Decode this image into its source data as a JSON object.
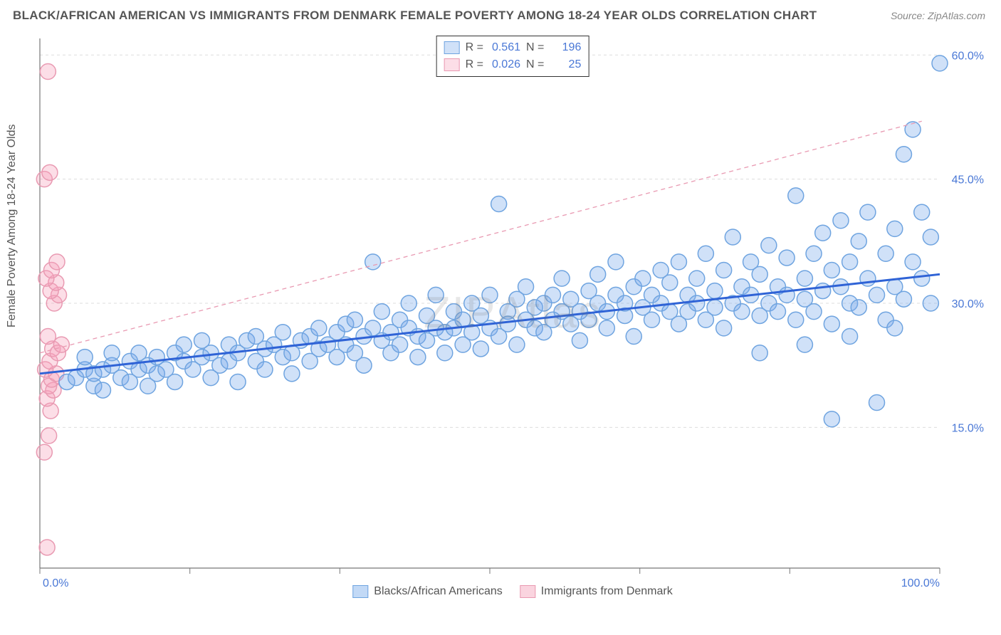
{
  "title": "BLACK/AFRICAN AMERICAN VS IMMIGRANTS FROM DENMARK FEMALE POVERTY AMONG 18-24 YEAR OLDS CORRELATION CHART",
  "source": "Source: ZipAtlas.com",
  "ylabel": "Female Poverty Among 18-24 Year Olds",
  "watermark": "ZIPAtlas",
  "chart": {
    "type": "scatter",
    "xlim": [
      0,
      100
    ],
    "ylim": [
      -2,
      62
    ],
    "xticks": [
      0,
      16.67,
      33.33,
      50,
      66.67,
      83.33,
      100
    ],
    "xtick_labels_shown": {
      "0": "0.0%",
      "100": "100.0%"
    },
    "yticks": [
      15,
      30,
      45,
      60
    ],
    "ytick_labels": [
      "15.0%",
      "30.0%",
      "45.0%",
      "60.0%"
    ],
    "grid_color": "#dddddd",
    "grid_dash": "4 4",
    "axis_color": "#777777",
    "background_color": "#ffffff",
    "marker_radius": 11,
    "marker_stroke_width": 1.5,
    "series": [
      {
        "name": "Blacks/African Americans",
        "fill": "rgba(120,170,235,0.35)",
        "stroke": "#6fa4e0",
        "r_value": "0.561",
        "n_value": "196",
        "trend": {
          "x1": 0,
          "y1": 21.5,
          "x2": 100,
          "y2": 33.5,
          "color": "#2f63d6",
          "width": 3,
          "dash": ""
        },
        "points": [
          [
            3,
            20.5
          ],
          [
            4,
            21
          ],
          [
            5,
            22
          ],
          [
            5,
            23.5
          ],
          [
            6,
            20
          ],
          [
            6,
            21.5
          ],
          [
            7,
            22
          ],
          [
            7,
            19.5
          ],
          [
            8,
            22.5
          ],
          [
            8,
            24
          ],
          [
            9,
            21
          ],
          [
            10,
            20.5
          ],
          [
            10,
            23
          ],
          [
            11,
            22
          ],
          [
            11,
            24
          ],
          [
            12,
            20
          ],
          [
            12,
            22.5
          ],
          [
            13,
            21.5
          ],
          [
            13,
            23.5
          ],
          [
            14,
            22
          ],
          [
            15,
            24
          ],
          [
            15,
            20.5
          ],
          [
            16,
            23
          ],
          [
            16,
            25
          ],
          [
            17,
            22
          ],
          [
            18,
            23.5
          ],
          [
            18,
            25.5
          ],
          [
            19,
            21
          ],
          [
            19,
            24
          ],
          [
            20,
            22.5
          ],
          [
            21,
            25
          ],
          [
            21,
            23
          ],
          [
            22,
            24
          ],
          [
            22,
            20.5
          ],
          [
            23,
            25.5
          ],
          [
            24,
            23
          ],
          [
            24,
            26
          ],
          [
            25,
            24.5
          ],
          [
            25,
            22
          ],
          [
            26,
            25
          ],
          [
            27,
            23.5
          ],
          [
            27,
            26.5
          ],
          [
            28,
            24
          ],
          [
            28,
            21.5
          ],
          [
            29,
            25.5
          ],
          [
            30,
            26
          ],
          [
            30,
            23
          ],
          [
            31,
            27
          ],
          [
            31,
            24.5
          ],
          [
            32,
            25
          ],
          [
            33,
            26.5
          ],
          [
            33,
            23.5
          ],
          [
            34,
            27.5
          ],
          [
            34,
            25
          ],
          [
            35,
            24
          ],
          [
            35,
            28
          ],
          [
            36,
            26
          ],
          [
            36,
            22.5
          ],
          [
            37,
            27
          ],
          [
            37,
            35
          ],
          [
            38,
            25.5
          ],
          [
            38,
            29
          ],
          [
            39,
            26.5
          ],
          [
            39,
            24
          ],
          [
            40,
            28
          ],
          [
            40,
            25
          ],
          [
            41,
            27
          ],
          [
            41,
            30
          ],
          [
            42,
            26
          ],
          [
            42,
            23.5
          ],
          [
            43,
            28.5
          ],
          [
            43,
            25.5
          ],
          [
            44,
            27
          ],
          [
            44,
            31
          ],
          [
            45,
            26.5
          ],
          [
            45,
            24
          ],
          [
            46,
            29
          ],
          [
            46,
            27
          ],
          [
            47,
            28
          ],
          [
            47,
            25
          ],
          [
            48,
            30
          ],
          [
            48,
            26.5
          ],
          [
            49,
            28.5
          ],
          [
            49,
            24.5
          ],
          [
            50,
            27
          ],
          [
            50,
            31
          ],
          [
            51,
            42
          ],
          [
            51,
            26
          ],
          [
            52,
            29
          ],
          [
            52,
            27.5
          ],
          [
            53,
            30.5
          ],
          [
            53,
            25
          ],
          [
            54,
            28
          ],
          [
            54,
            32
          ],
          [
            55,
            27
          ],
          [
            55,
            29.5
          ],
          [
            56,
            30
          ],
          [
            56,
            26.5
          ],
          [
            57,
            31
          ],
          [
            57,
            28
          ],
          [
            58,
            29
          ],
          [
            58,
            33
          ],
          [
            59,
            27.5
          ],
          [
            59,
            30.5
          ],
          [
            60,
            29
          ],
          [
            60,
            25.5
          ],
          [
            61,
            31.5
          ],
          [
            61,
            28
          ],
          [
            62,
            30
          ],
          [
            62,
            33.5
          ],
          [
            63,
            29
          ],
          [
            63,
            27
          ],
          [
            64,
            31
          ],
          [
            64,
            35
          ],
          [
            65,
            28.5
          ],
          [
            65,
            30
          ],
          [
            66,
            32
          ],
          [
            66,
            26
          ],
          [
            67,
            29.5
          ],
          [
            67,
            33
          ],
          [
            68,
            31
          ],
          [
            68,
            28
          ],
          [
            69,
            34
          ],
          [
            69,
            30
          ],
          [
            70,
            29
          ],
          [
            70,
            32.5
          ],
          [
            71,
            27.5
          ],
          [
            71,
            35
          ],
          [
            72,
            31
          ],
          [
            72,
            29
          ],
          [
            73,
            33
          ],
          [
            73,
            30
          ],
          [
            74,
            28
          ],
          [
            74,
            36
          ],
          [
            75,
            31.5
          ],
          [
            75,
            29.5
          ],
          [
            76,
            34
          ],
          [
            76,
            27
          ],
          [
            77,
            30
          ],
          [
            77,
            38
          ],
          [
            78,
            32
          ],
          [
            78,
            29
          ],
          [
            79,
            35
          ],
          [
            79,
            31
          ],
          [
            80,
            28.5
          ],
          [
            80,
            33.5
          ],
          [
            81,
            30
          ],
          [
            81,
            37
          ],
          [
            82,
            32
          ],
          [
            82,
            29
          ],
          [
            83,
            35.5
          ],
          [
            83,
            31
          ],
          [
            84,
            43
          ],
          [
            84,
            28
          ],
          [
            85,
            33
          ],
          [
            85,
            30.5
          ],
          [
            86,
            36
          ],
          [
            86,
            29
          ],
          [
            87,
            31.5
          ],
          [
            87,
            38.5
          ],
          [
            88,
            34
          ],
          [
            88,
            27.5
          ],
          [
            89,
            32
          ],
          [
            89,
            40
          ],
          [
            90,
            30
          ],
          [
            90,
            35
          ],
          [
            91,
            37.5
          ],
          [
            91,
            29.5
          ],
          [
            92,
            33
          ],
          [
            92,
            41
          ],
          [
            93,
            31
          ],
          [
            93,
            18
          ],
          [
            88,
            16
          ],
          [
            94,
            36
          ],
          [
            94,
            28
          ],
          [
            95,
            39
          ],
          [
            95,
            32
          ],
          [
            96,
            48
          ],
          [
            96,
            30.5
          ],
          [
            97,
            35
          ],
          [
            97,
            51
          ],
          [
            98,
            33
          ],
          [
            98,
            41
          ],
          [
            99,
            38
          ],
          [
            99,
            30
          ],
          [
            100,
            59
          ],
          [
            95,
            27
          ],
          [
            90,
            26
          ],
          [
            85,
            25
          ],
          [
            80,
            24
          ]
        ]
      },
      {
        "name": "Immigrants from Denmark",
        "fill": "rgba(245,160,185,0.35)",
        "stroke": "#e99ab2",
        "r_value": "0.026",
        "n_value": "25",
        "trend": {
          "x1": 0,
          "y1": 24,
          "x2": 98,
          "y2": 52,
          "color": "#e99ab2",
          "width": 1.3,
          "dash": "6 5"
        },
        "points": [
          [
            0.8,
            0.5
          ],
          [
            0.5,
            12
          ],
          [
            1,
            14
          ],
          [
            1.2,
            17
          ],
          [
            0.8,
            18.5
          ],
          [
            1.5,
            19.5
          ],
          [
            1,
            20
          ],
          [
            1.3,
            20.8
          ],
          [
            1.8,
            21.5
          ],
          [
            0.6,
            22
          ],
          [
            1.1,
            23
          ],
          [
            1.4,
            24.5
          ],
          [
            2,
            24
          ],
          [
            2.4,
            25
          ],
          [
            0.9,
            26
          ],
          [
            1.6,
            30
          ],
          [
            2.1,
            31
          ],
          [
            1.2,
            31.5
          ],
          [
            1.8,
            32.5
          ],
          [
            0.7,
            33
          ],
          [
            1.3,
            34
          ],
          [
            1.9,
            35
          ],
          [
            0.5,
            45
          ],
          [
            1.1,
            45.8
          ],
          [
            0.9,
            58
          ]
        ]
      }
    ]
  },
  "legend_top": {
    "r_label": "R  =",
    "n_label": "N  ="
  },
  "legend_bottom": [
    {
      "label": "Blacks/African Americans",
      "fill": "rgba(120,170,235,0.45)",
      "stroke": "#6fa4e0"
    },
    {
      "label": "Immigrants from Denmark",
      "fill": "rgba(245,160,185,0.45)",
      "stroke": "#e99ab2"
    }
  ]
}
